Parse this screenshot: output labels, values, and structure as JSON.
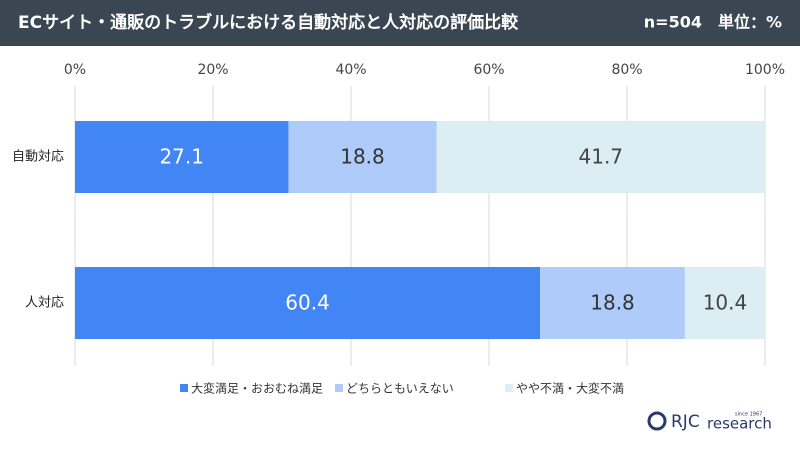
{
  "chart_data": {
    "type": "bar",
    "orientation": "horizontal",
    "stacked": "percent",
    "title": "ECサイト・通販のトラブルにおける自動対応と人対応の評価比較",
    "subtitle": "n=504　単位：%",
    "categories": [
      "自動対応",
      "人対応"
    ],
    "series": [
      {
        "name": "大変満足・おおむね満足",
        "color": "#4285f4",
        "label_color": "#ffffff",
        "values": [
          27.1,
          60.4
        ]
      },
      {
        "name": "どちらともいえない",
        "color": "#aecbfa",
        "label_color": "#333333",
        "values": [
          18.8,
          18.8
        ]
      },
      {
        "name": "やや不満・大変不満",
        "color": "#dcedf4",
        "label_color": "#444444",
        "values": [
          41.7,
          10.4
        ]
      }
    ],
    "xlim": [
      0,
      100
    ],
    "xticks": [
      {
        "value": 0,
        "label": "0%"
      },
      {
        "value": 20,
        "label": "20%"
      },
      {
        "value": 40,
        "label": "40%"
      },
      {
        "value": 60,
        "label": "60%"
      },
      {
        "value": 80,
        "label": "80%"
      },
      {
        "value": 100,
        "label": "100%"
      }
    ],
    "grid": true,
    "legend": "bottom"
  },
  "logo": {
    "name": "RJC",
    "word": "research",
    "since": "since 1967"
  }
}
